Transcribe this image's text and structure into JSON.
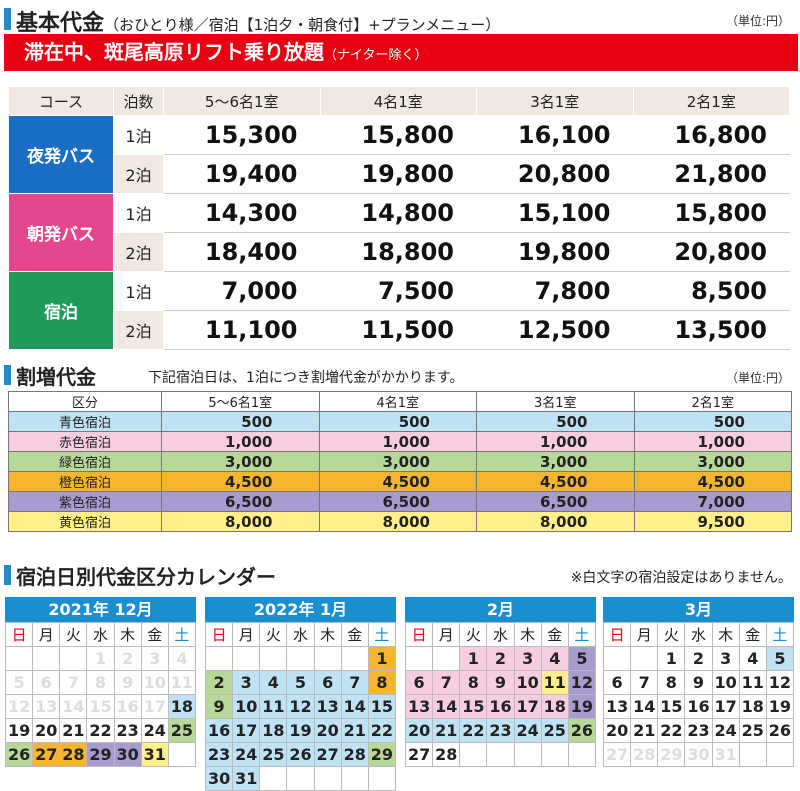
{
  "colors": {
    "accent": "#1a8ecf",
    "banner": "#e60012",
    "night_bus": "#1a6fc4",
    "morning_bus": "#e5478f",
    "stay": "#1f9a5a",
    "blue": "#bfe3f5",
    "red": "#f7cde0",
    "green": "#b8d89a",
    "orange": "#f5b52e",
    "purple": "#a79bd0",
    "yellow": "#fff08a",
    "header": "#efe9e1"
  },
  "basic": {
    "title": "基本代金",
    "subtitle": "（おひとり様／宿泊【1泊夕・朝食付】+プランメニュー）",
    "unit": "（単位:円）",
    "banner_main": "滞在中、斑尾高原リフト乗り放題",
    "banner_note": "（ナイター除く）",
    "headers": [
      "コース",
      "泊数",
      "5～6名1室",
      "4名1室",
      "3名1室",
      "2名1室"
    ],
    "courses": [
      {
        "name": "夜発バス",
        "color": "#1a6fc4",
        "rows": [
          {
            "nights": "1泊",
            "prices": [
              "15,300",
              "15,800",
              "16,100",
              "16,800"
            ]
          },
          {
            "nights": "2泊",
            "prices": [
              "19,400",
              "19,800",
              "20,800",
              "21,800"
            ]
          }
        ]
      },
      {
        "name": "朝発バス",
        "color": "#e5478f",
        "rows": [
          {
            "nights": "1泊",
            "prices": [
              "14,300",
              "14,800",
              "15,100",
              "15,800"
            ]
          },
          {
            "nights": "2泊",
            "prices": [
              "18,400",
              "18,800",
              "19,800",
              "20,800"
            ]
          }
        ]
      },
      {
        "name": "宿泊",
        "color": "#1f9a5a",
        "rows": [
          {
            "nights": "1泊",
            "prices": [
              "7,000",
              "7,500",
              "7,800",
              "8,500"
            ]
          },
          {
            "nights": "2泊",
            "prices": [
              "11,100",
              "11,500",
              "12,500",
              "13,500"
            ]
          }
        ]
      }
    ]
  },
  "surcharge": {
    "title": "割増代金",
    "note": "下記宿泊日は、1泊につき割増代金がかかります。",
    "unit": "（単位:円）",
    "headers": [
      "区分",
      "5～6名1室",
      "4名1室",
      "3名1室",
      "2名1室"
    ],
    "rows": [
      {
        "label": "青色宿泊",
        "color": "#bfe3f5",
        "values": [
          "500",
          "500",
          "500",
          "500"
        ]
      },
      {
        "label": "赤色宿泊",
        "color": "#f7cde0",
        "values": [
          "1,000",
          "1,000",
          "1,000",
          "1,000"
        ]
      },
      {
        "label": "緑色宿泊",
        "color": "#b8d89a",
        "values": [
          "3,000",
          "3,000",
          "3,000",
          "3,000"
        ]
      },
      {
        "label": "橙色宿泊",
        "color": "#f5b52e",
        "values": [
          "4,500",
          "4,500",
          "4,500",
          "4,500"
        ]
      },
      {
        "label": "紫色宿泊",
        "color": "#a79bd0",
        "values": [
          "6,500",
          "6,500",
          "6,500",
          "7,000"
        ]
      },
      {
        "label": "黄色宿泊",
        "color": "#fff08a",
        "values": [
          "8,000",
          "8,000",
          "8,000",
          "9,500"
        ]
      }
    ]
  },
  "calendar": {
    "title": "宿泊日別代金区分カレンダー",
    "note": "※白文字の宿泊設定はありません。",
    "weekdays": [
      "日",
      "月",
      "火",
      "水",
      "木",
      "金",
      "土"
    ],
    "months": [
      {
        "label": "2021年 12月",
        "weeks": [
          [
            [
              "",
              ""
            ],
            [
              "",
              ""
            ],
            [
              "",
              ""
            ],
            [
              "1",
              "g"
            ],
            [
              "2",
              "g"
            ],
            [
              "3",
              "g"
            ],
            [
              "4",
              "g"
            ]
          ],
          [
            [
              "5",
              "g"
            ],
            [
              "6",
              "g"
            ],
            [
              "7",
              "g"
            ],
            [
              "8",
              "g"
            ],
            [
              "9",
              "g"
            ],
            [
              "10",
              "g"
            ],
            [
              "11",
              "g"
            ]
          ],
          [
            [
              "12",
              "g"
            ],
            [
              "13",
              "g"
            ],
            [
              "14",
              "g"
            ],
            [
              "15",
              "g"
            ],
            [
              "16",
              "g"
            ],
            [
              "17",
              "g"
            ],
            [
              "18",
              "blue"
            ]
          ],
          [
            [
              "19",
              ""
            ],
            [
              "20",
              ""
            ],
            [
              "21",
              ""
            ],
            [
              "22",
              ""
            ],
            [
              "23",
              ""
            ],
            [
              "24",
              ""
            ],
            [
              "25",
              "green"
            ]
          ],
          [
            [
              "26",
              "green"
            ],
            [
              "27",
              "orange"
            ],
            [
              "28",
              "orange"
            ],
            [
              "29",
              "purple"
            ],
            [
              "30",
              "purple"
            ],
            [
              "31",
              "yellow"
            ],
            [
              "",
              ""
            ]
          ]
        ]
      },
      {
        "label": "2022年 1月",
        "weeks": [
          [
            [
              "",
              ""
            ],
            [
              "",
              ""
            ],
            [
              "",
              ""
            ],
            [
              "",
              ""
            ],
            [
              "",
              ""
            ],
            [
              "",
              ""
            ],
            [
              "1",
              "orange"
            ]
          ],
          [
            [
              "2",
              "green"
            ],
            [
              "3",
              "blue"
            ],
            [
              "4",
              "blue"
            ],
            [
              "5",
              "blue"
            ],
            [
              "6",
              "blue"
            ],
            [
              "7",
              "blue"
            ],
            [
              "8",
              "orange"
            ]
          ],
          [
            [
              "9",
              "green"
            ],
            [
              "10",
              "blue"
            ],
            [
              "11",
              "blue"
            ],
            [
              "12",
              "blue"
            ],
            [
              "13",
              "blue"
            ],
            [
              "14",
              "blue"
            ],
            [
              "15",
              "blue"
            ]
          ],
          [
            [
              "16",
              "blue"
            ],
            [
              "17",
              "blue"
            ],
            [
              "18",
              "blue"
            ],
            [
              "19",
              "blue"
            ],
            [
              "20",
              "blue"
            ],
            [
              "21",
              "blue"
            ],
            [
              "22",
              "blue"
            ]
          ],
          [
            [
              "23",
              "blue"
            ],
            [
              "24",
              "blue"
            ],
            [
              "25",
              "blue"
            ],
            [
              "26",
              "blue"
            ],
            [
              "27",
              "blue"
            ],
            [
              "28",
              "blue"
            ],
            [
              "29",
              "green"
            ]
          ],
          [
            [
              "30",
              "blue"
            ],
            [
              "31",
              "blue"
            ],
            [
              "",
              ""
            ],
            [
              "",
              ""
            ],
            [
              "",
              ""
            ],
            [
              "",
              ""
            ],
            [
              "",
              ""
            ]
          ]
        ]
      },
      {
        "label": "2月",
        "weeks": [
          [
            [
              "",
              ""
            ],
            [
              "",
              ""
            ],
            [
              "1",
              "red"
            ],
            [
              "2",
              "red"
            ],
            [
              "3",
              "red"
            ],
            [
              "4",
              "red"
            ],
            [
              "5",
              "purple"
            ]
          ],
          [
            [
              "6",
              "red"
            ],
            [
              "7",
              "red"
            ],
            [
              "8",
              "red"
            ],
            [
              "9",
              "red"
            ],
            [
              "10",
              "red"
            ],
            [
              "11",
              "yellow"
            ],
            [
              "12",
              "purple"
            ]
          ],
          [
            [
              "13",
              "red"
            ],
            [
              "14",
              "red"
            ],
            [
              "15",
              "red"
            ],
            [
              "16",
              "red"
            ],
            [
              "17",
              "red"
            ],
            [
              "18",
              "red"
            ],
            [
              "19",
              "purple"
            ]
          ],
          [
            [
              "20",
              "blue"
            ],
            [
              "21",
              "blue"
            ],
            [
              "22",
              "blue"
            ],
            [
              "23",
              "blue"
            ],
            [
              "24",
              "blue"
            ],
            [
              "25",
              "blue"
            ],
            [
              "26",
              "green"
            ]
          ],
          [
            [
              "27",
              ""
            ],
            [
              "28",
              ""
            ],
            [
              "",
              ""
            ],
            [
              "",
              ""
            ],
            [
              "",
              ""
            ],
            [
              "",
              ""
            ],
            [
              "",
              ""
            ]
          ]
        ]
      },
      {
        "label": "3月",
        "weeks": [
          [
            [
              "",
              ""
            ],
            [
              "",
              ""
            ],
            [
              "1",
              ""
            ],
            [
              "2",
              ""
            ],
            [
              "3",
              ""
            ],
            [
              "4",
              ""
            ],
            [
              "5",
              "blue"
            ]
          ],
          [
            [
              "6",
              ""
            ],
            [
              "7",
              ""
            ],
            [
              "8",
              ""
            ],
            [
              "9",
              ""
            ],
            [
              "10",
              ""
            ],
            [
              "11",
              ""
            ],
            [
              "12",
              ""
            ]
          ],
          [
            [
              "13",
              ""
            ],
            [
              "14",
              ""
            ],
            [
              "15",
              ""
            ],
            [
              "16",
              ""
            ],
            [
              "17",
              ""
            ],
            [
              "18",
              ""
            ],
            [
              "19",
              ""
            ]
          ],
          [
            [
              "20",
              ""
            ],
            [
              "21",
              ""
            ],
            [
              "22",
              ""
            ],
            [
              "23",
              ""
            ],
            [
              "24",
              ""
            ],
            [
              "25",
              ""
            ],
            [
              "26",
              ""
            ]
          ],
          [
            [
              "27",
              "g"
            ],
            [
              "28",
              "g"
            ],
            [
              "29",
              "g"
            ],
            [
              "30",
              "g"
            ],
            [
              "31",
              "g"
            ],
            [
              "",
              ""
            ],
            [
              "",
              ""
            ]
          ]
        ]
      }
    ]
  }
}
